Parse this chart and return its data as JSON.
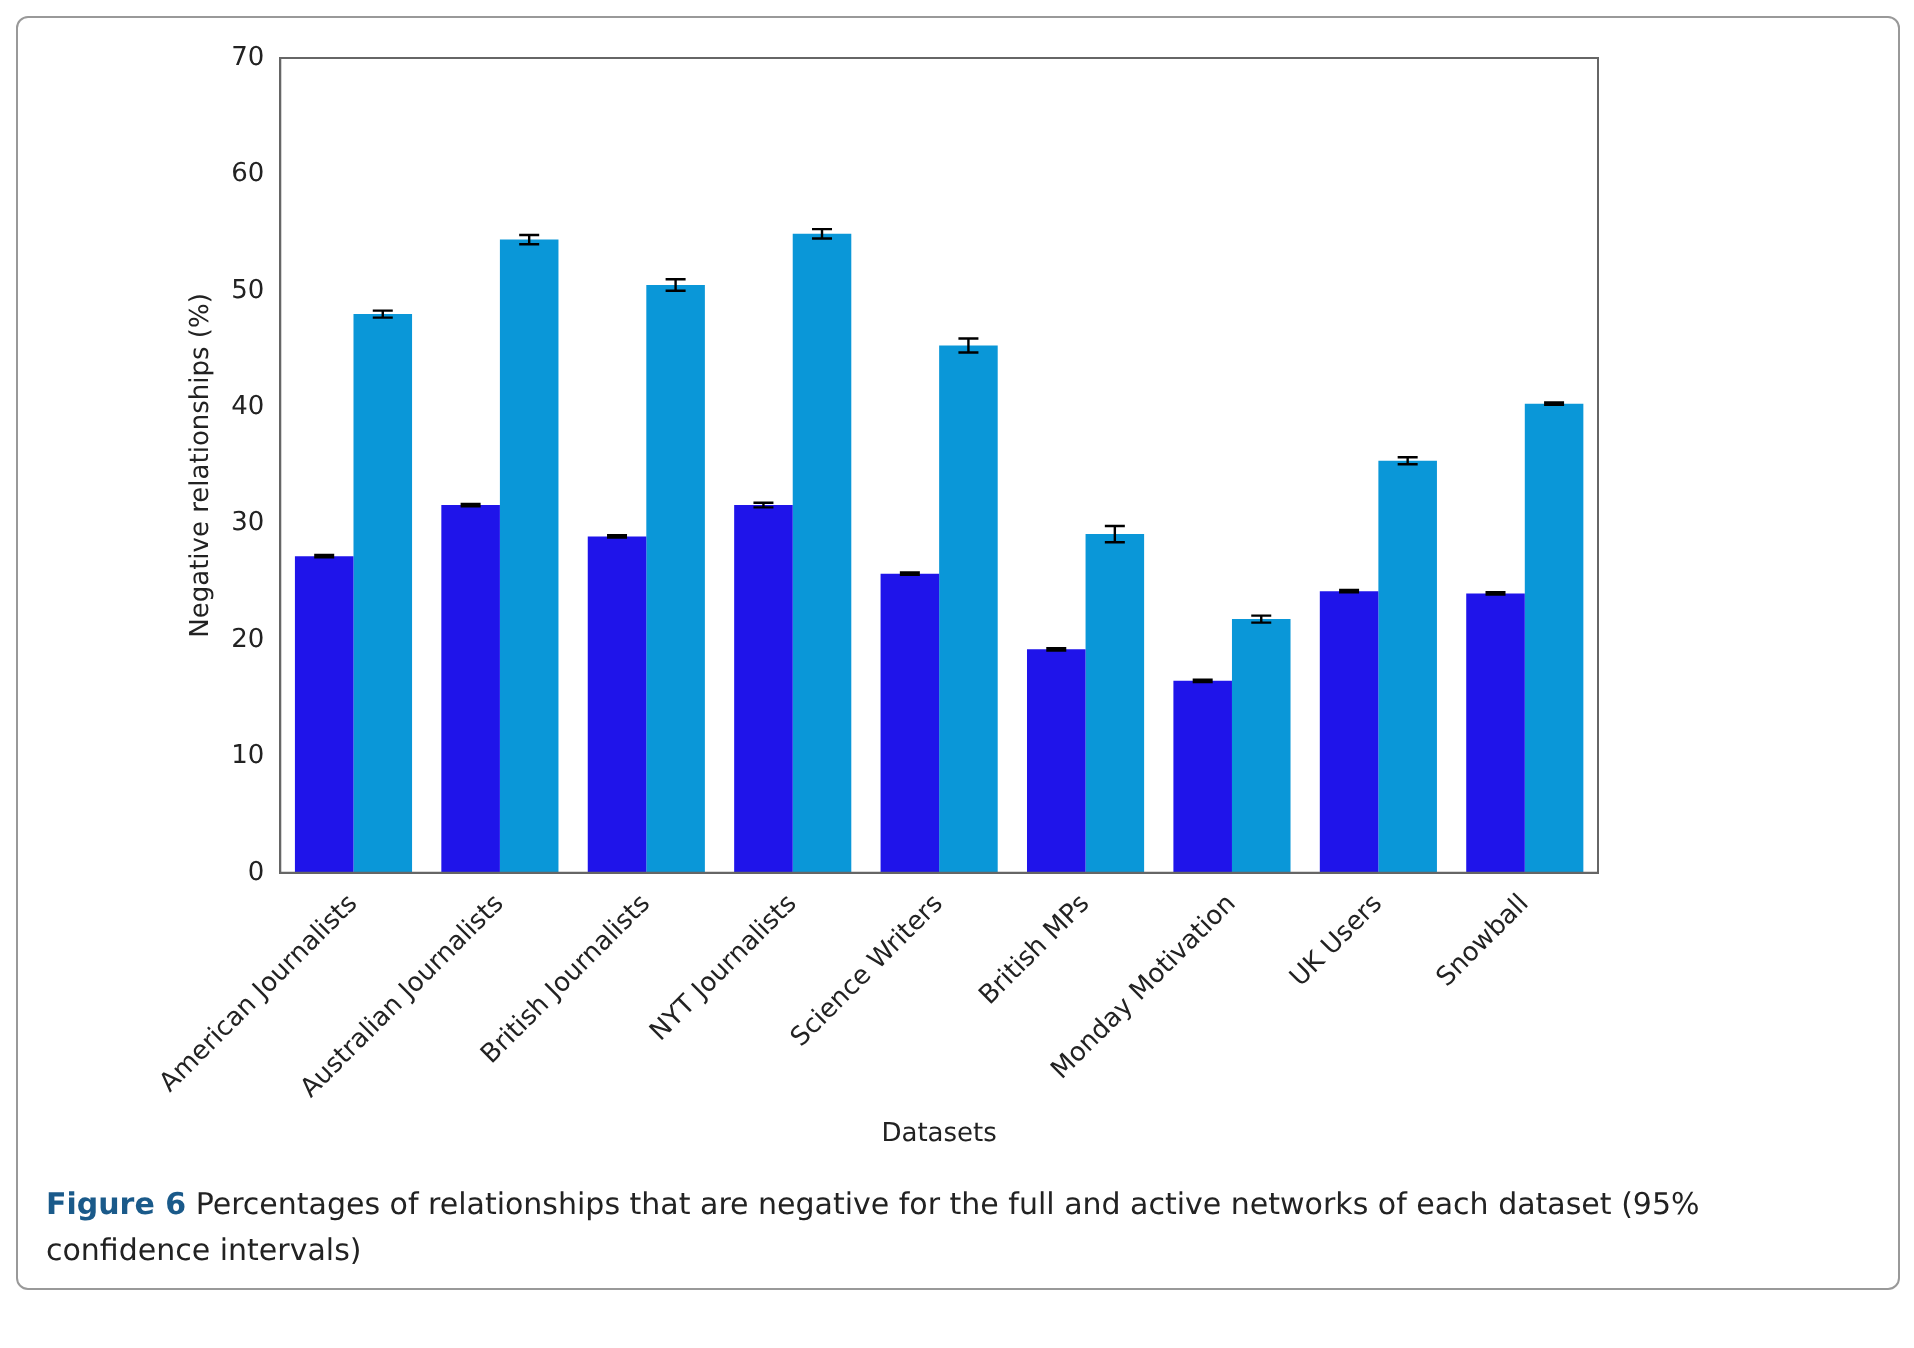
{
  "chart_data": {
    "type": "bar",
    "xlabel": "Datasets",
    "ylabel": "Negative relationships (%)",
    "categories": [
      "American Journalists",
      "Australian Journalists",
      "British Journalists",
      "NYT Journalists",
      "Science Writers",
      "British MPs",
      "Monday Motivation",
      "UK Users",
      "Snowball"
    ],
    "series": [
      {
        "color": "#1f14ea",
        "values": [
          27.2,
          31.6,
          28.9,
          31.6,
          25.7,
          19.2,
          16.5,
          24.2,
          24.0
        ],
        "errors": [
          0.1,
          0.1,
          0.1,
          0.2,
          0.1,
          0.1,
          0.1,
          0.1,
          0.1
        ]
      },
      {
        "color": "#0a97d8",
        "values": [
          48.0,
          54.4,
          50.5,
          54.9,
          45.3,
          29.1,
          21.8,
          35.4,
          40.3
        ],
        "errors": [
          0.3,
          0.4,
          0.5,
          0.4,
          0.6,
          0.7,
          0.3,
          0.3,
          0.1
        ]
      }
    ],
    "ylim": [
      0,
      70
    ],
    "yticks": [
      0,
      10,
      20,
      30,
      40,
      50,
      60,
      70
    ],
    "grid": false,
    "legend": false,
    "annotations": [
      "Figure 6",
      "Percentages of relationships that are negative for the full and active networks of each dataset (95% confidence intervals)"
    ]
  }
}
